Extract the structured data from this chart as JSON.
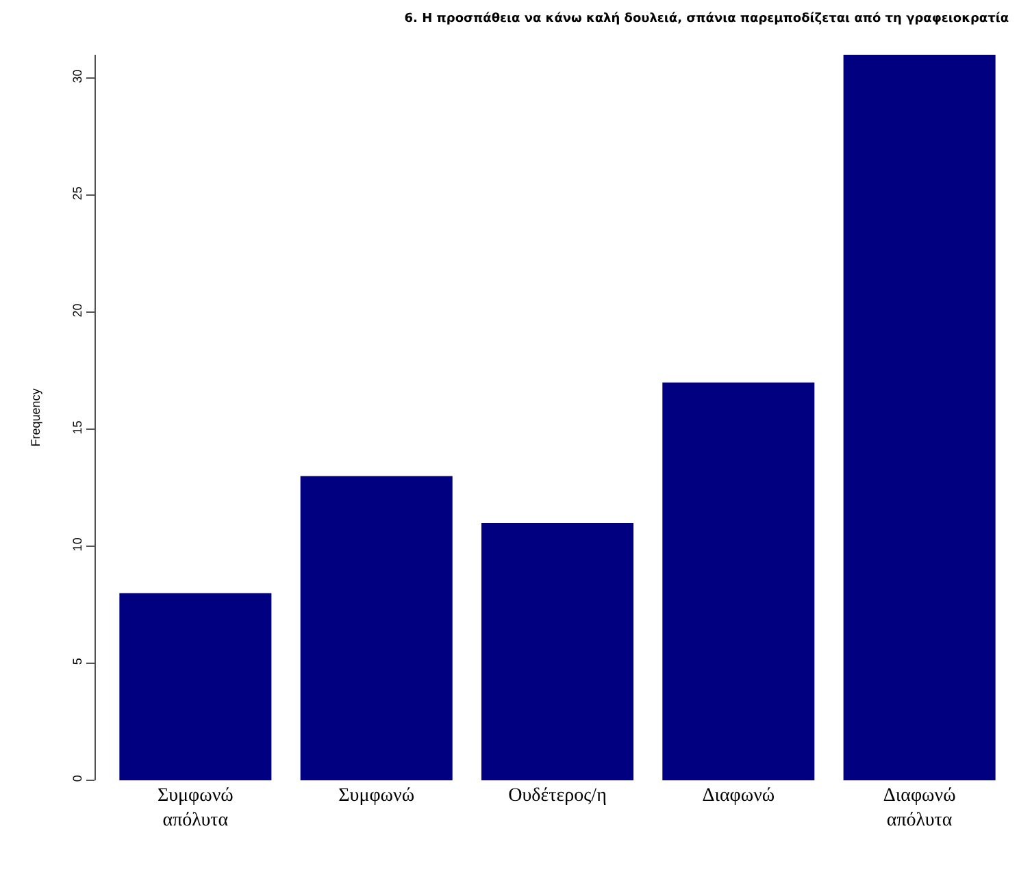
{
  "chart_data": {
    "type": "bar",
    "title": "6. Η προσπάθεια να κάνω καλή δουλειά, σπάνια παρεμποδίζεται από τη γραφειοκρατία",
    "ylabel": "Frequency",
    "categories": [
      "Συμφωνώ απόλυτα",
      "Συμφωνώ",
      "Ουδέτερος/η",
      "Διαφωνώ",
      "Διαφωνώ απόλυτα"
    ],
    "values": [
      8,
      13,
      11,
      17,
      31
    ],
    "color": "#000080",
    "ylim": [
      0,
      31
    ],
    "yticks": [
      0,
      5,
      10,
      15,
      20,
      25,
      30
    ]
  }
}
